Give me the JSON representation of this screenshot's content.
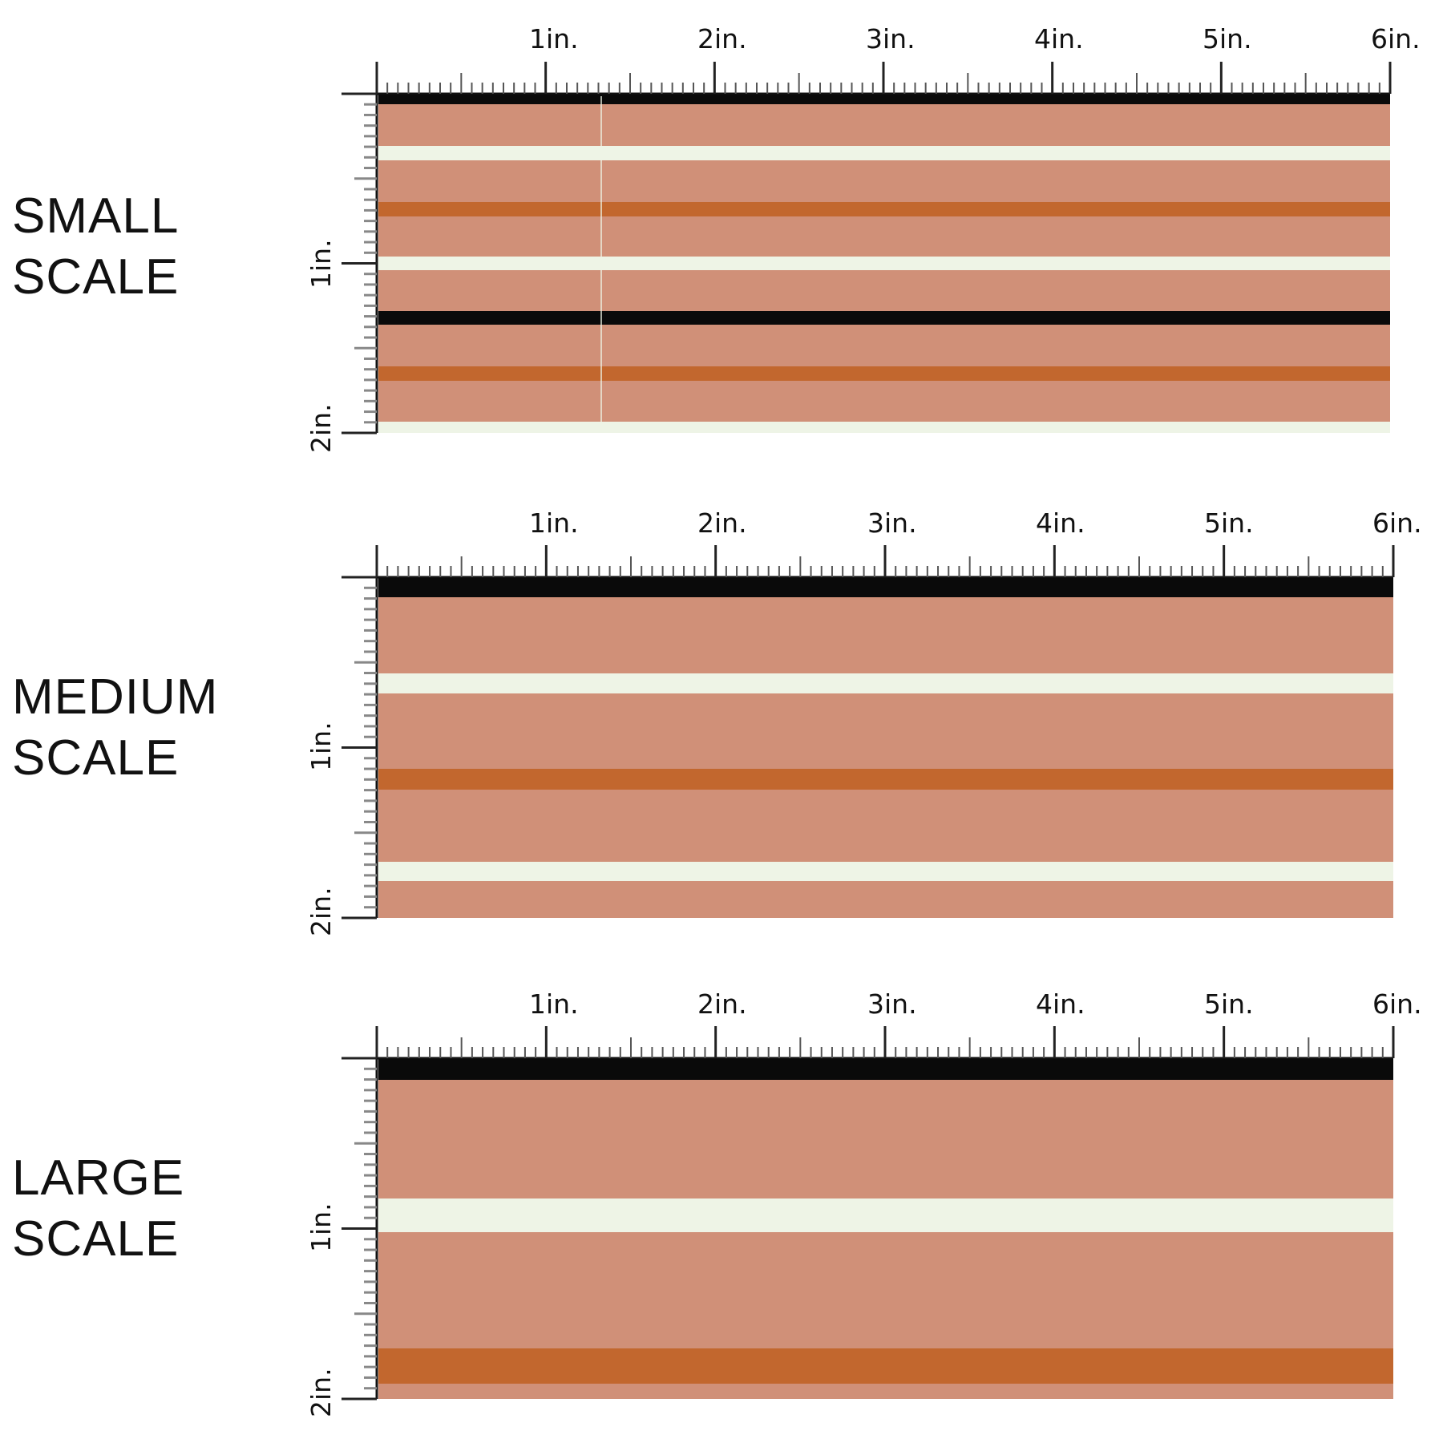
{
  "sections": [
    {
      "label_line1": "SMALL",
      "label_line2": "SCALE",
      "ruler_labels": [
        "1in.",
        "2in.",
        "3in.",
        "4in.",
        "5in.",
        "6in."
      ],
      "vertical_labels": [
        "1in.",
        "2in."
      ]
    },
    {
      "label_line1": "MEDIUM",
      "label_line2": "SCALE",
      "ruler_labels": [
        "1in.",
        "2in.",
        "3in.",
        "4in.",
        "5in.",
        "6in."
      ],
      "vertical_labels": [
        "1in.",
        "2in."
      ]
    },
    {
      "label_line1": "LARGE",
      "label_line2": "SCALE",
      "ruler_labels": [
        "1in.",
        "2in.",
        "3in.",
        "4in.",
        "5in.",
        "6in."
      ],
      "vertical_labels": [
        "1in.",
        "2in."
      ]
    }
  ],
  "colors": {
    "background_stripe": "#d09078",
    "cream_stripe": "#eef4e6",
    "rust_stripe": "#c2672e",
    "black_stripe": "#0a0a0a",
    "ruler": "#8a8a8a"
  }
}
